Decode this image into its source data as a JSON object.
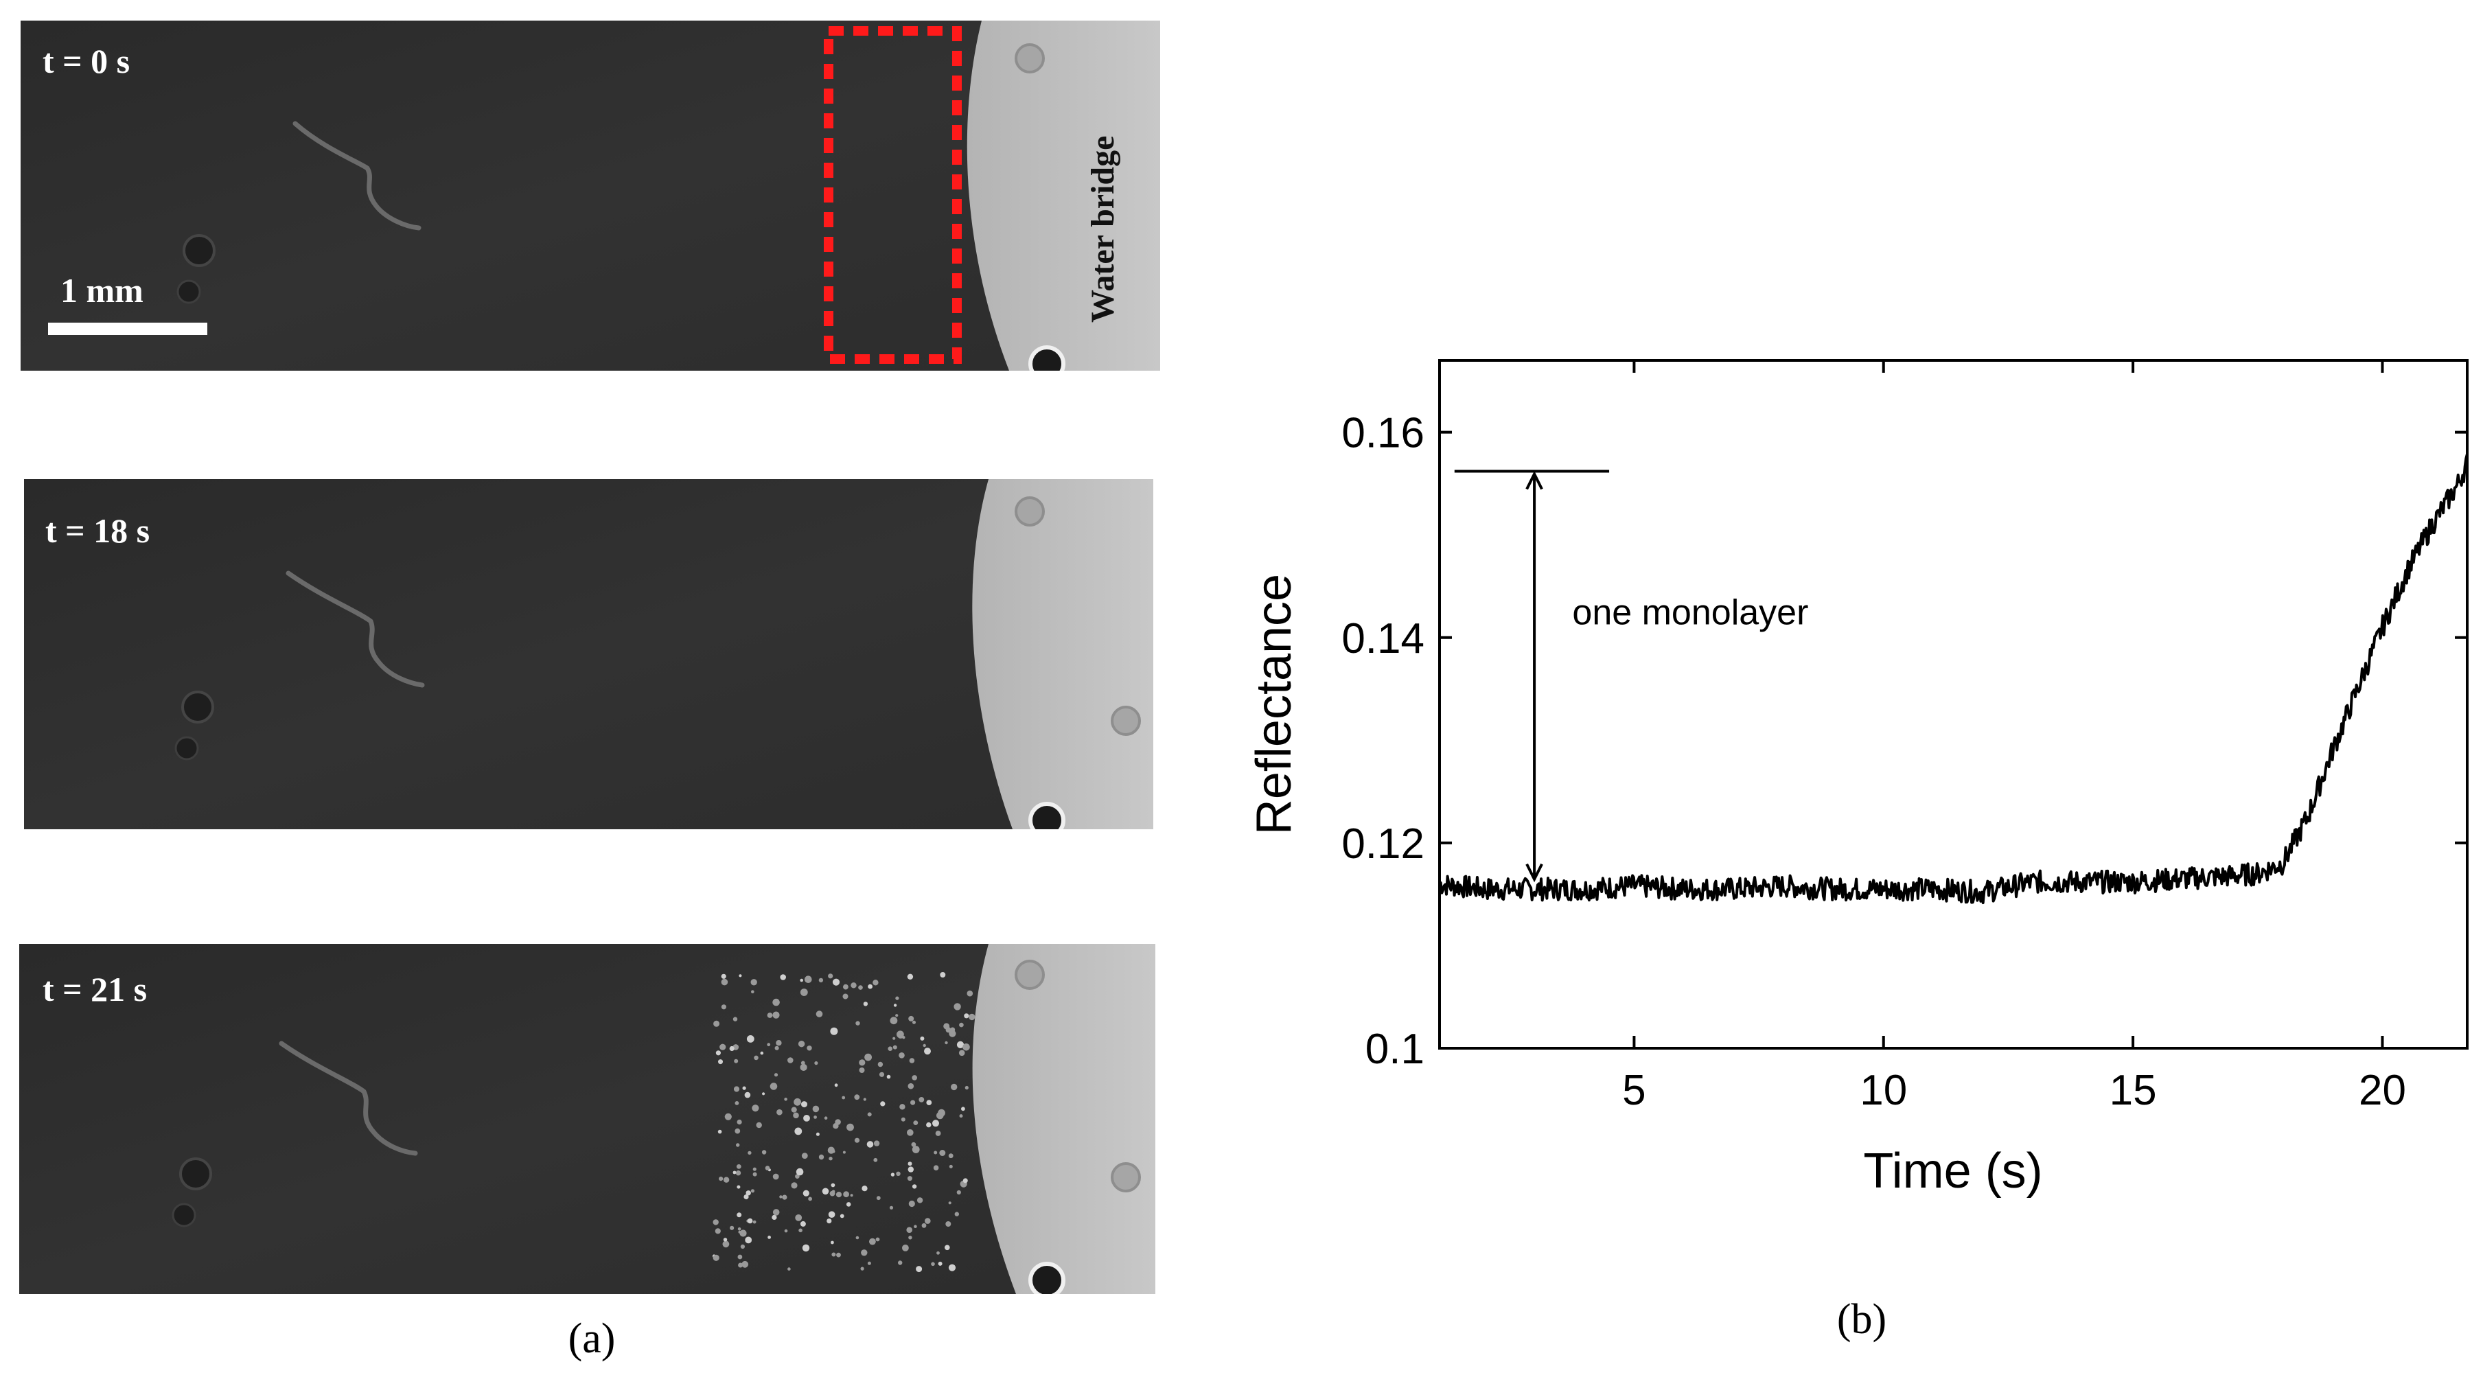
{
  "panel_a": {
    "frames": [
      {
        "time_label": "t = 0 s"
      },
      {
        "time_label": "t = 18 s"
      },
      {
        "time_label": "t = 21 s"
      }
    ],
    "scale_bar_label": "1 mm",
    "water_bridge_label": "Water bridge",
    "roi_color": "#ff1a1a",
    "caption": "(a)"
  },
  "panel_b": {
    "caption": "(b)"
  },
  "chart_data": {
    "type": "line",
    "xlabel": "Time (s)",
    "ylabel": "Reflectance",
    "xlim": [
      1.1,
      21.7
    ],
    "ylim": [
      0.1,
      0.167
    ],
    "xticks": [
      5,
      10,
      15,
      20
    ],
    "xtick_labels": [
      "5",
      "10",
      "15",
      "20"
    ],
    "yticks": [
      0.1,
      0.12,
      0.14,
      0.16
    ],
    "ytick_labels": [
      "0.1",
      "0.12",
      "0.14",
      "0.16"
    ],
    "grid": false,
    "series": [
      {
        "color": "#000000",
        "note": "noisy trace, amplitude about ±0.001",
        "x": [
          1.1,
          2,
          3,
          4,
          5,
          6,
          7,
          8,
          9,
          10,
          11,
          12,
          13,
          14,
          15,
          16,
          17,
          17.5,
          18,
          18.5,
          19,
          19.5,
          20,
          20.5,
          21,
          21.5,
          21.7
        ],
        "y": [
          0.116,
          0.1155,
          0.1155,
          0.1155,
          0.1158,
          0.1155,
          0.1155,
          0.1158,
          0.1155,
          0.1155,
          0.1155,
          0.1152,
          0.1162,
          0.1162,
          0.1162,
          0.1165,
          0.1168,
          0.117,
          0.118,
          0.1225,
          0.129,
          0.135,
          0.141,
          0.1465,
          0.151,
          0.1548,
          0.157
        ]
      }
    ],
    "annotations": [
      {
        "text": "one monolayer",
        "x": 5.0,
        "y": 0.1425
      },
      {
        "type": "hline",
        "y": 0.1562,
        "x_from": 1.4,
        "x_to": 4.5
      },
      {
        "type": "double-arrow",
        "x": 3.0,
        "y_from": 0.1162,
        "y_to": 0.1562
      }
    ]
  }
}
